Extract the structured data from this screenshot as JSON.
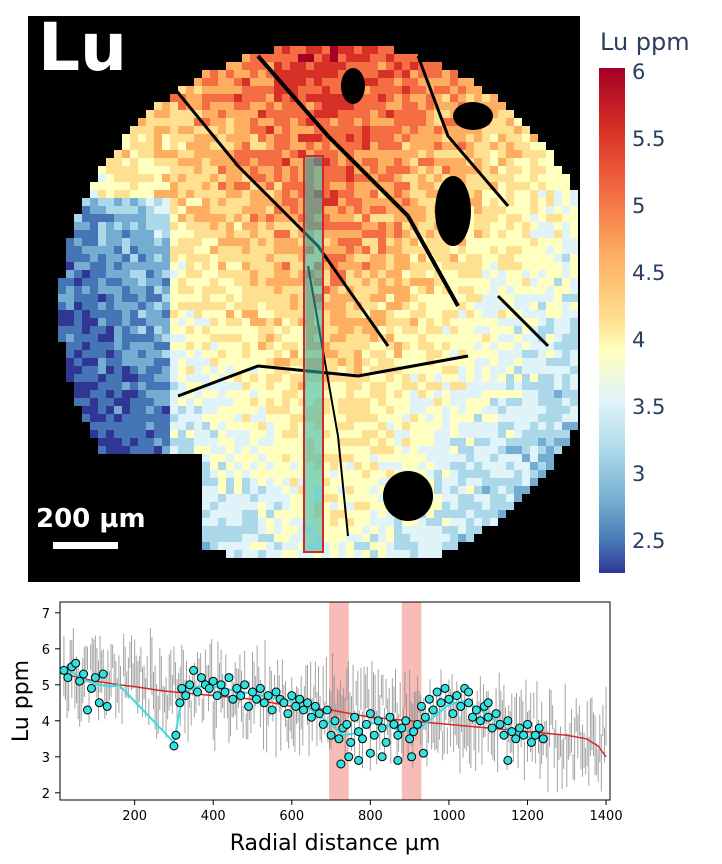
{
  "map": {
    "element_label": "Lu",
    "scalebar_label": "200 µm",
    "colorbar": {
      "title": "Lu ppm",
      "ticks": [
        "6",
        "5.5",
        "5",
        "4.5",
        "4",
        "3.5",
        "3",
        "2.5"
      ]
    },
    "colors": {
      "background": "#000000",
      "transect_outline": "#d62728",
      "transect_fill": "#2bb5b5"
    }
  },
  "chart_data": {
    "type": "scatter",
    "xlabel": "Radial distance µm",
    "ylabel": "Lu ppm",
    "xlim": [
      10,
      1410
    ],
    "ylim": [
      1.8,
      7.3
    ],
    "xticks": [
      "200",
      "400",
      "600",
      "800",
      "1000",
      "1200",
      "1400"
    ],
    "yticks": [
      "2",
      "3",
      "4",
      "5",
      "6",
      "7"
    ],
    "highlight_bands": [
      [
        695,
        745
      ],
      [
        880,
        930
      ]
    ],
    "series": [
      {
        "kind": "trend",
        "color": "#d62728",
        "x": [
          20,
          100,
          160,
          200,
          260,
          300,
          350,
          400,
          450,
          500,
          550,
          600,
          650,
          700,
          750,
          800,
          850,
          900,
          950,
          1000,
          1050,
          1100,
          1150,
          1200,
          1250,
          1300,
          1350,
          1380,
          1400
        ],
        "y": [
          5.3,
          5.1,
          5.0,
          4.95,
          4.85,
          4.8,
          4.75,
          4.7,
          4.65,
          4.6,
          4.5,
          4.4,
          4.35,
          4.3,
          4.2,
          4.1,
          4.05,
          4.0,
          3.95,
          3.9,
          3.85,
          3.8,
          3.75,
          3.7,
          3.65,
          3.6,
          3.5,
          3.3,
          3.0
        ]
      },
      {
        "kind": "smooth",
        "color": "#33e0e0",
        "x": [
          20,
          50,
          80,
          110,
          140,
          160,
          300,
          315,
          330,
          360,
          400,
          450,
          500,
          550,
          600,
          650,
          700,
          730,
          760,
          800,
          850,
          880,
          920,
          960,
          1000,
          1040,
          1080,
          1120,
          1160,
          1200,
          1240
        ],
        "y": [
          5.4,
          5.3,
          5.1,
          5.0,
          4.95,
          5.0,
          3.4,
          4.3,
          4.8,
          4.95,
          4.95,
          4.85,
          4.75,
          4.65,
          4.55,
          4.3,
          3.9,
          3.6,
          3.65,
          3.95,
          3.85,
          3.7,
          3.75,
          4.1,
          4.45,
          4.55,
          4.3,
          4.0,
          3.7,
          3.55,
          3.5
        ]
      },
      {
        "kind": "points",
        "color": "#33e0e0",
        "edge": "#000000",
        "x": [
          20,
          30,
          40,
          50,
          60,
          70,
          80,
          90,
          100,
          110,
          120,
          130,
          300,
          305,
          315,
          320,
          330,
          340,
          350,
          360,
          370,
          380,
          390,
          400,
          410,
          420,
          430,
          440,
          450,
          460,
          470,
          480,
          490,
          500,
          510,
          520,
          530,
          540,
          550,
          560,
          570,
          580,
          590,
          600,
          610,
          620,
          630,
          640,
          650,
          660,
          670,
          680,
          690,
          700,
          710,
          720,
          730,
          740,
          750,
          760,
          770,
          780,
          790,
          800,
          810,
          820,
          830,
          840,
          850,
          860,
          870,
          880,
          890,
          900,
          910,
          920,
          930,
          940,
          950,
          960,
          970,
          980,
          990,
          1000,
          1010,
          1020,
          1030,
          1040,
          1050,
          1060,
          1070,
          1080,
          1090,
          1100,
          1110,
          1120,
          1130,
          1140,
          1150,
          1160,
          1170,
          1180,
          1190,
          1200,
          1210,
          1220,
          1230,
          1240,
          725,
          745,
          770,
          800,
          830,
          870,
          905,
          935,
          1050,
          1100,
          1150
        ],
        "y": [
          5.4,
          5.2,
          5.5,
          5.6,
          5.1,
          5.3,
          4.3,
          4.9,
          5.2,
          4.5,
          5.3,
          4.4,
          3.3,
          3.6,
          4.5,
          4.9,
          4.7,
          5.0,
          5.4,
          4.8,
          5.2,
          5.0,
          4.9,
          5.1,
          4.7,
          5.0,
          4.8,
          5.2,
          4.6,
          4.9,
          4.7,
          5.0,
          4.4,
          4.8,
          4.6,
          4.9,
          4.5,
          4.7,
          4.3,
          4.8,
          4.6,
          4.5,
          4.2,
          4.7,
          4.4,
          4.6,
          4.3,
          4.5,
          4.1,
          4.4,
          4.2,
          3.9,
          4.3,
          3.6,
          4.0,
          3.5,
          3.8,
          3.9,
          3.4,
          4.1,
          3.7,
          3.5,
          3.9,
          4.2,
          3.6,
          4.0,
          3.8,
          3.4,
          4.1,
          3.9,
          3.6,
          3.8,
          4.0,
          3.5,
          3.7,
          3.9,
          4.4,
          4.1,
          4.6,
          4.3,
          4.8,
          4.5,
          4.9,
          4.6,
          4.2,
          4.7,
          4.4,
          4.9,
          4.5,
          4.1,
          4.3,
          4.0,
          4.4,
          4.1,
          3.8,
          4.2,
          3.9,
          3.6,
          4.0,
          3.7,
          3.5,
          3.8,
          3.6,
          3.9,
          3.4,
          3.6,
          3.8,
          3.5,
          2.8,
          3.0,
          2.9,
          3.1,
          3.0,
          2.9,
          3.0,
          3.1,
          4.8,
          4.5,
          2.9
        ]
      }
    ]
  }
}
